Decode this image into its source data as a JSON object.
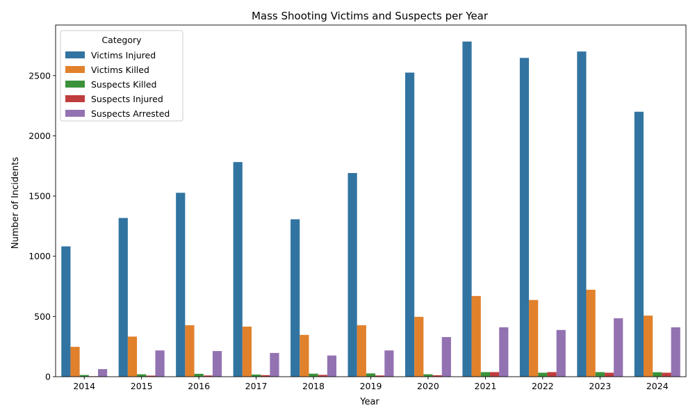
{
  "chart_data": {
    "type": "bar",
    "title": "Mass Shooting Victims and Suspects per Year",
    "xlabel": "Year",
    "ylabel": "Number of Incidents",
    "categories": [
      "2014",
      "2015",
      "2016",
      "2017",
      "2018",
      "2019",
      "2020",
      "2021",
      "2022",
      "2023",
      "2024"
    ],
    "ylim": [
      0,
      2920
    ],
    "yticks": [
      0,
      500,
      1000,
      1500,
      2000,
      2500
    ],
    "grid": false,
    "legend": {
      "title": "Category",
      "placement": "top-left"
    },
    "series": [
      {
        "name": "Victims Injured",
        "color": "#3274a1",
        "values": [
          1082,
          1318,
          1527,
          1782,
          1307,
          1691,
          2525,
          2783,
          2647,
          2700,
          2200
        ]
      },
      {
        "name": "Victims Killed",
        "color": "#e1812c",
        "values": [
          248,
          333,
          427,
          416,
          347,
          427,
          497,
          670,
          637,
          722,
          507
        ]
      },
      {
        "name": "Suspects Killed",
        "color": "#3a923a",
        "values": [
          14,
          20,
          24,
          18,
          25,
          27,
          20,
          38,
          33,
          38,
          37
        ]
      },
      {
        "name": "Suspects Injured",
        "color": "#c03d3e",
        "values": [
          4,
          9,
          10,
          13,
          15,
          10,
          12,
          38,
          38,
          33,
          33
        ]
      },
      {
        "name": "Suspects Arrested",
        "color": "#9372b2",
        "values": [
          63,
          218,
          213,
          197,
          176,
          218,
          329,
          410,
          388,
          485,
          410
        ]
      }
    ]
  }
}
